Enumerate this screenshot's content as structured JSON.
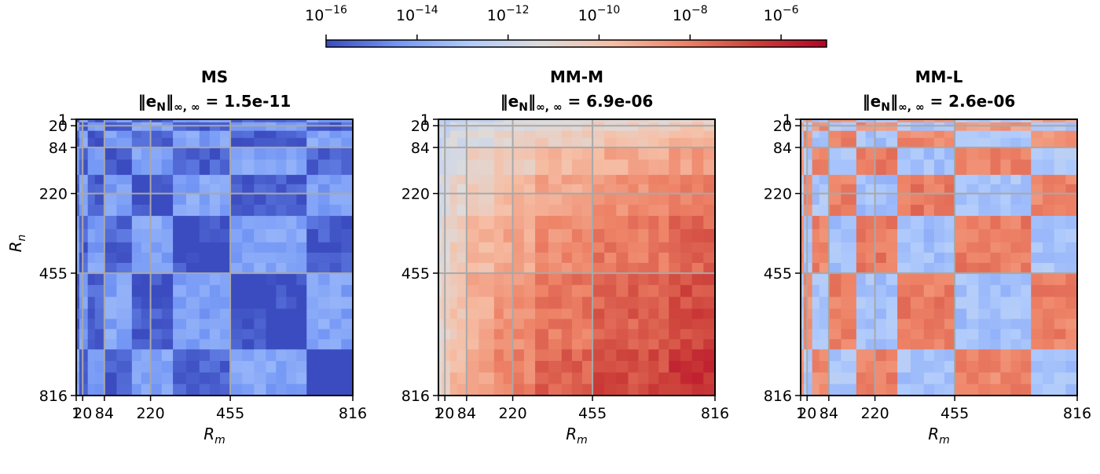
{
  "chart_data": {
    "type": "heatmap",
    "colorbar": {
      "colormap": "coolwarm",
      "scale": "log",
      "range": [
        1e-16,
        1e-05
      ],
      "ticks": [
        {
          "base": "10",
          "exp": "−16",
          "value": 1e-16
        },
        {
          "base": "10",
          "exp": "−14",
          "value": 1e-14
        },
        {
          "base": "10",
          "exp": "−12",
          "value": 1e-12
        },
        {
          "base": "10",
          "exp": "−10",
          "value": 1e-10
        },
        {
          "base": "10",
          "exp": "−8",
          "value": 1e-08
        },
        {
          "base": "10",
          "exp": "−6",
          "value": 1e-06
        }
      ],
      "colors": [
        "#3b4cc0",
        "#7396f5",
        "#b0cbfc",
        "#dddcdc",
        "#f6bfa6",
        "#ee8468",
        "#cc4039",
        "#b40426"
      ]
    },
    "axis_ticks": [
      {
        "label": "1",
        "value": 1
      },
      {
        "label": "20",
        "value": 20
      },
      {
        "label": "84",
        "value": 84
      },
      {
        "label": "220",
        "value": 220
      },
      {
        "label": "455",
        "value": 455
      },
      {
        "label": "816",
        "value": 816
      }
    ],
    "axis_range": [
      1,
      816
    ],
    "panels": [
      {
        "name": "ms",
        "title": "MS",
        "metric_label": "‖e",
        "metric_sub": "N",
        "metric_norm": "‖",
        "metric_norm_sub": "∞, ∞",
        "metric_value": " = 1.5e-11",
        "xlabel_main": "R",
        "xlabel_sub": "m",
        "ylabel_main": "R",
        "ylabel_sub": "n",
        "show_ylabel": true,
        "max_error_log10": -10.8,
        "blocks_log10": [
          [
            -15.5,
            -14.0,
            -15.5,
            -14.2,
            -15.6,
            -14.1,
            -15.6,
            -14.0
          ],
          [
            -14.0,
            -15.6,
            -14.1,
            -15.5,
            -14.0,
            -15.6,
            -14.2,
            -15.5
          ],
          [
            -15.6,
            -14.1,
            -15.7,
            -14.0,
            -15.6,
            -14.1,
            -15.5,
            -14.0
          ],
          [
            -14.1,
            -15.5,
            -14.0,
            -15.8,
            -14.1,
            -15.6,
            -14.0,
            -15.5
          ],
          [
            -15.5,
            -14.0,
            -15.6,
            -14.1,
            -15.8,
            -14.0,
            -15.7,
            -14.1
          ],
          [
            -14.0,
            -15.6,
            -14.1,
            -15.5,
            -14.0,
            -15.9,
            -14.1,
            -15.6
          ],
          [
            -15.6,
            -14.2,
            -15.5,
            -14.0,
            -15.7,
            -14.1,
            -15.9,
            -14.0
          ],
          [
            -14.0,
            -15.5,
            -14.1,
            -15.6,
            -14.0,
            -15.5,
            -14.0,
            -15.9
          ]
        ]
      },
      {
        "name": "mm-m",
        "title": "MM-M",
        "metric_label": "‖e",
        "metric_sub": "N",
        "metric_norm": "‖",
        "metric_norm_sub": "∞, ∞",
        "metric_value": " = 6.9e-06",
        "xlabel_main": "R",
        "xlabel_sub": "m",
        "ylabel_main": "R",
        "ylabel_sub": "n",
        "show_ylabel": false,
        "max_error_log10": -5.16,
        "blocks_log10": [
          [
            -12.8,
            -12.5,
            -12.2,
            -12.0,
            -11.7,
            -11.4,
            -11.1,
            -10.9
          ],
          [
            -12.5,
            -12.2,
            -11.9,
            -11.6,
            -11.3,
            -11.0,
            -10.6,
            -10.3
          ],
          [
            -12.2,
            -11.9,
            -11.5,
            -11.2,
            -10.8,
            -10.4,
            -10.0,
            -9.6
          ],
          [
            -12.0,
            -11.6,
            -11.2,
            -10.7,
            -10.2,
            -9.6,
            -9.2,
            -8.8
          ],
          [
            -11.7,
            -11.3,
            -10.8,
            -10.2,
            -9.6,
            -9.0,
            -8.5,
            -8.1
          ],
          [
            -11.4,
            -11.0,
            -10.4,
            -9.6,
            -9.0,
            -8.4,
            -7.9,
            -7.4
          ],
          [
            -11.1,
            -10.6,
            -10.0,
            -9.2,
            -8.5,
            -7.9,
            -7.3,
            -6.8
          ],
          [
            -10.9,
            -10.3,
            -9.6,
            -8.8,
            -8.1,
            -7.4,
            -6.8,
            -6.2
          ]
        ]
      },
      {
        "name": "mm-l",
        "title": "MM-L",
        "metric_label": "‖e",
        "metric_sub": "N",
        "metric_norm": "‖",
        "metric_norm_sub": "∞, ∞",
        "metric_value": " = 2.6e-06",
        "xlabel_main": "R",
        "xlabel_sub": "m",
        "ylabel_main": "R",
        "ylabel_sub": "n",
        "show_ylabel": false,
        "max_error_log10": -5.58,
        "blocks_log10": [
          [
            -12.5,
            -9.0,
            -12.8,
            -8.6,
            -12.9,
            -8.8,
            -12.7,
            -8.9
          ],
          [
            -9.2,
            -12.6,
            -8.5,
            -12.9,
            -8.4,
            -13.0,
            -8.7,
            -12.8
          ],
          [
            -12.6,
            -8.4,
            -12.9,
            -8.2,
            -13.1,
            -8.3,
            -12.9,
            -8.5
          ],
          [
            -8.6,
            -12.8,
            -8.1,
            -13.0,
            -8.0,
            -13.1,
            -8.2,
            -12.9
          ],
          [
            -12.8,
            -8.3,
            -13.0,
            -8.0,
            -13.2,
            -7.9,
            -13.0,
            -8.1
          ],
          [
            -8.5,
            -12.9,
            -8.2,
            -13.1,
            -7.9,
            -13.2,
            -8.0,
            -13.0
          ],
          [
            -12.9,
            -8.4,
            -13.0,
            -8.1,
            -13.1,
            -8.0,
            -13.1,
            -8.1
          ],
          [
            -8.6,
            -12.8,
            -8.3,
            -12.9,
            -8.1,
            -13.0,
            -8.2,
            -13.2
          ]
        ]
      }
    ]
  }
}
